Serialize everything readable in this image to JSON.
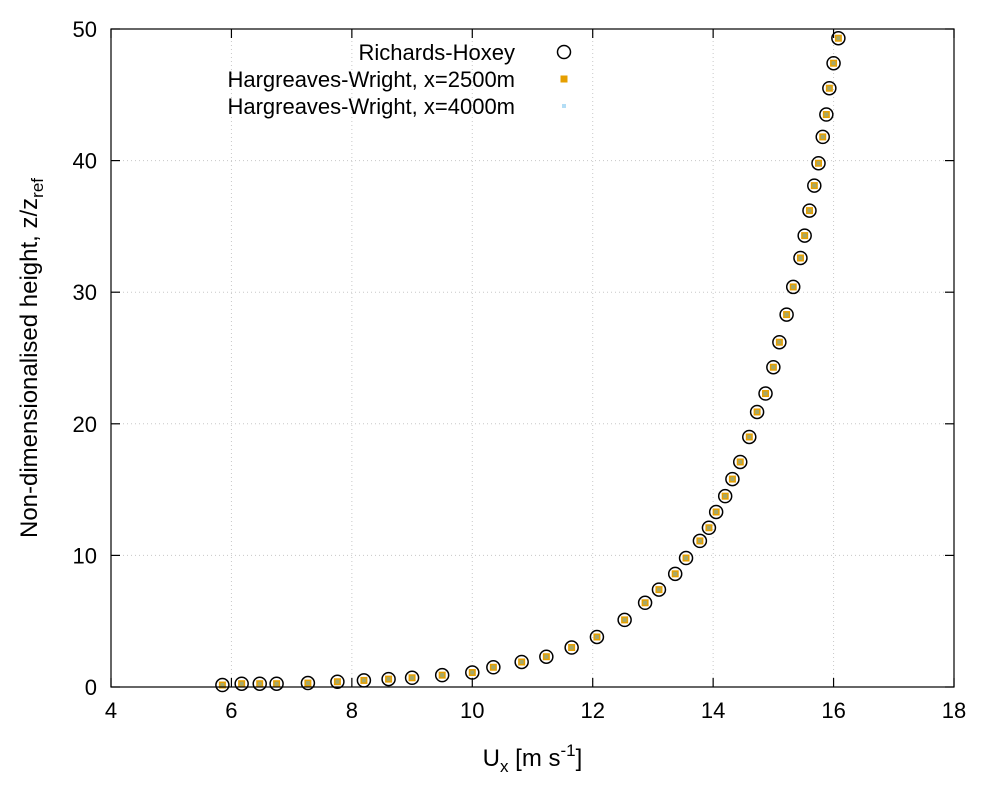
{
  "chart_data": {
    "type": "scatter",
    "xlabel": {
      "main": "U",
      "sub": "x",
      "rest": " [m s",
      "sup": "-1",
      "end": "]"
    },
    "ylabel": {
      "main": "Non-dimensionalised height, z/z",
      "sub": "ref"
    },
    "xlim": [
      4,
      18
    ],
    "ylim": [
      0,
      50
    ],
    "xticks": [
      4,
      6,
      8,
      10,
      12,
      14,
      16,
      18
    ],
    "yticks": [
      0,
      10,
      20,
      30,
      40,
      50
    ],
    "grid": true,
    "legend": "top-center",
    "series": [
      {
        "name": "Richards-Hoxey",
        "marker": "open-circle",
        "color": "#000000",
        "x": [
          5.85,
          6.17,
          6.47,
          6.75,
          7.27,
          7.76,
          8.2,
          8.61,
          9.0,
          9.5,
          10.0,
          10.35,
          10.82,
          11.23,
          11.65,
          12.07,
          12.53,
          12.87,
          13.1,
          13.37,
          13.55,
          13.78,
          13.93,
          14.05,
          14.2,
          14.32,
          14.45,
          14.6,
          14.73,
          14.87,
          15.0,
          15.1,
          15.22,
          15.33,
          15.45,
          15.52,
          15.6,
          15.68,
          15.75,
          15.82,
          15.88,
          15.93,
          16.0,
          16.08
        ],
        "y": [
          0.15,
          0.25,
          0.25,
          0.25,
          0.3,
          0.4,
          0.5,
          0.6,
          0.7,
          0.9,
          1.1,
          1.5,
          1.9,
          2.3,
          3.0,
          3.8,
          5.1,
          6.4,
          7.4,
          8.6,
          9.8,
          11.1,
          12.1,
          13.3,
          14.5,
          15.8,
          17.1,
          19.0,
          20.9,
          22.3,
          24.3,
          26.2,
          28.3,
          30.4,
          32.6,
          34.3,
          36.2,
          38.1,
          39.8,
          41.8,
          43.5,
          45.5,
          47.4,
          49.3
        ]
      },
      {
        "name": "Hargreaves-Wright, x=2500m",
        "marker": "filled-square",
        "color": "#E69F00",
        "x": [
          5.85,
          6.17,
          6.47,
          6.75,
          7.27,
          7.76,
          8.2,
          8.61,
          9.0,
          9.5,
          10.0,
          10.35,
          10.82,
          11.23,
          11.65,
          12.07,
          12.53,
          12.87,
          13.1,
          13.37,
          13.55,
          13.78,
          13.93,
          14.05,
          14.2,
          14.32,
          14.45,
          14.6,
          14.73,
          14.87,
          15.0,
          15.1,
          15.22,
          15.33,
          15.45,
          15.52,
          15.6,
          15.68,
          15.75,
          15.82,
          15.88,
          15.93,
          16.0,
          16.08
        ],
        "y": [
          0.15,
          0.25,
          0.25,
          0.25,
          0.3,
          0.4,
          0.5,
          0.6,
          0.7,
          0.9,
          1.1,
          1.5,
          1.9,
          2.3,
          3.0,
          3.8,
          5.1,
          6.4,
          7.4,
          8.6,
          9.8,
          11.1,
          12.1,
          13.3,
          14.5,
          15.8,
          17.1,
          19.0,
          20.9,
          22.3,
          24.3,
          26.2,
          28.3,
          30.4,
          32.6,
          34.3,
          36.2,
          38.1,
          39.8,
          41.8,
          43.5,
          45.5,
          47.4,
          49.3
        ]
      },
      {
        "name": "Hargreaves-Wright, x=4000m",
        "marker": "filled-square-small",
        "color": "#56B4E9",
        "x": [
          5.85,
          6.17,
          6.47,
          6.75,
          7.27,
          7.76,
          8.2,
          8.61,
          9.0,
          9.5,
          10.0,
          10.35,
          10.82,
          11.23,
          11.65,
          12.07,
          12.53,
          12.87,
          13.1,
          13.37,
          13.55,
          13.78,
          13.93,
          14.05,
          14.2,
          14.32,
          14.45,
          14.6,
          14.73,
          14.87,
          15.0,
          15.1,
          15.22,
          15.33,
          15.45,
          15.52,
          15.6,
          15.68,
          15.75,
          15.82,
          15.88,
          15.93,
          16.0,
          16.08
        ],
        "y": [
          0.15,
          0.25,
          0.25,
          0.25,
          0.3,
          0.4,
          0.5,
          0.6,
          0.7,
          0.9,
          1.1,
          1.5,
          1.9,
          2.3,
          3.0,
          3.8,
          5.1,
          6.4,
          7.4,
          8.6,
          9.8,
          11.1,
          12.1,
          13.3,
          14.5,
          15.8,
          17.1,
          19.0,
          20.9,
          22.3,
          24.3,
          26.2,
          28.3,
          30.4,
          32.6,
          34.3,
          36.2,
          38.1,
          39.8,
          41.8,
          43.5,
          45.5,
          47.4,
          49.3
        ]
      }
    ]
  }
}
